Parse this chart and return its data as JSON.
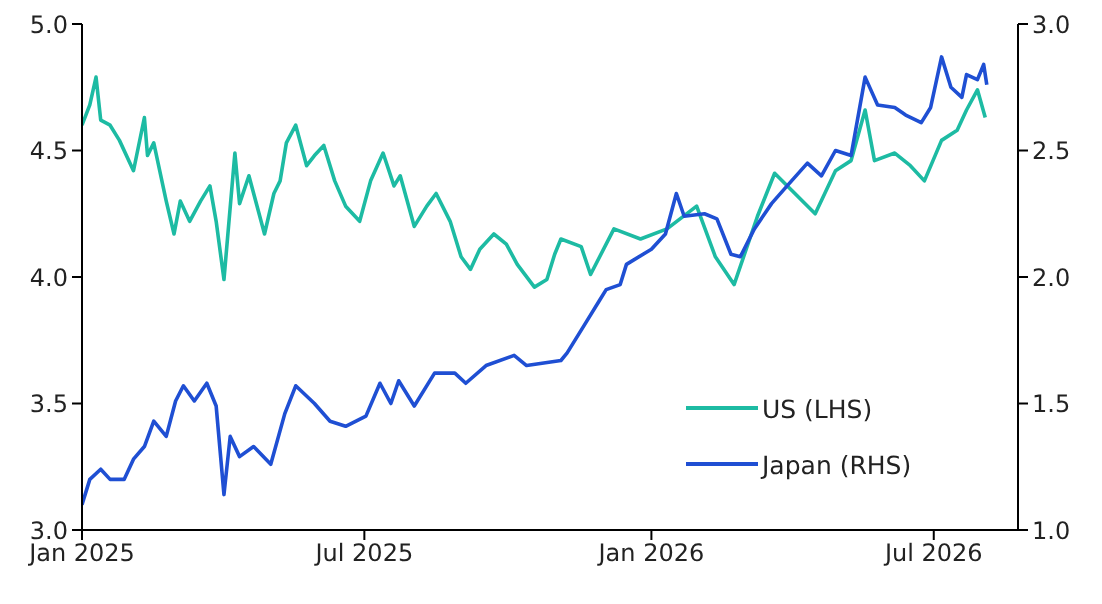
{
  "chart_data": {
    "type": "line",
    "xlim": [
      "2025-01-01",
      "2026-08-24"
    ],
    "xticks": [
      {
        "value": "2025-01-01",
        "label": "Jan 2025"
      },
      {
        "value": "2025-07-01",
        "label": "Jul 2025"
      },
      {
        "value": "2026-01-01",
        "label": "Jan 2026"
      },
      {
        "value": "2026-07-01",
        "label": "Jul 2026"
      }
    ],
    "ylim": [
      3,
      5
    ],
    "yticks": [
      {
        "value": 3,
        "label": "3.0"
      },
      {
        "value": 3.5,
        "label": "3.5"
      },
      {
        "value": 4,
        "label": "4.0"
      },
      {
        "value": 4.5,
        "label": "4.5"
      },
      {
        "value": 5,
        "label": "5.0"
      }
    ],
    "y2lim": [
      1,
      3
    ],
    "y2ticks": [
      {
        "value": 1,
        "label": "1.0"
      },
      {
        "value": 1.5,
        "label": "1.5"
      },
      {
        "value": 2,
        "label": "2.0"
      },
      {
        "value": 2.5,
        "label": "2.5"
      },
      {
        "value": 3,
        "label": "3.0"
      }
    ],
    "legend": "bottom right",
    "line_style": "solid",
    "marker": "none",
    "series": [
      {
        "name": "US (LHS)",
        "color": "#1dbba3",
        "x": [
          "2025-01-01",
          "2025-01-06",
          "2025-01-10",
          "2025-01-13",
          "2025-01-19",
          "2025-01-25",
          "2025-02-03",
          "2025-02-10",
          "2025-02-12",
          "2025-02-16",
          "2025-02-24",
          "2025-03-01",
          "2025-03-05",
          "2025-03-11",
          "2025-03-18",
          "2025-03-24",
          "2025-03-28",
          "2025-04-02",
          "2025-04-09",
          "2025-04-12",
          "2025-04-18",
          "2025-04-28",
          "2025-05-04",
          "2025-05-08",
          "2025-05-12",
          "2025-05-18",
          "2025-05-25",
          "2025-05-30",
          "2025-06-05",
          "2025-06-12",
          "2025-06-19",
          "2025-06-28",
          "2025-07-05",
          "2025-07-13",
          "2025-07-20",
          "2025-07-24",
          "2025-08-02",
          "2025-08-10",
          "2025-08-16",
          "2025-08-25",
          "2025-09-01",
          "2025-09-07",
          "2025-09-13",
          "2025-09-22",
          "2025-09-30",
          "2025-10-07",
          "2025-10-18",
          "2025-10-26",
          "2025-10-31",
          "2025-11-04",
          "2025-11-17",
          "2025-11-23",
          "2025-12-08",
          "2025-12-25",
          "2026-01-11",
          "2026-01-30",
          "2026-02-11",
          "2026-02-23",
          "2026-03-10",
          "2026-03-21",
          "2026-04-03",
          "2026-04-16",
          "2026-04-29",
          "2026-05-09",
          "2026-05-18",
          "2026-05-24",
          "2026-06-06",
          "2026-06-16",
          "2026-06-25",
          "2026-07-06",
          "2026-07-16",
          "2026-07-22",
          "2026-07-29",
          "2026-08-03"
        ],
        "values": [
          4.6,
          4.68,
          4.79,
          4.62,
          4.6,
          4.54,
          4.42,
          4.63,
          4.48,
          4.53,
          4.3,
          4.17,
          4.3,
          4.22,
          4.3,
          4.36,
          4.22,
          3.99,
          4.49,
          4.29,
          4.4,
          4.17,
          4.33,
          4.38,
          4.53,
          4.6,
          4.44,
          4.48,
          4.52,
          4.38,
          4.28,
          4.22,
          4.38,
          4.49,
          4.36,
          4.4,
          4.2,
          4.28,
          4.33,
          4.22,
          4.08,
          4.03,
          4.11,
          4.17,
          4.13,
          4.05,
          3.96,
          3.99,
          4.09,
          4.15,
          4.12,
          4.01,
          4.19,
          4.15,
          4.19,
          4.28,
          4.08,
          3.97,
          4.24,
          4.41,
          4.33,
          4.25,
          4.42,
          4.46,
          4.66,
          4.46,
          4.49,
          4.44,
          4.38,
          4.54,
          4.58,
          4.66,
          4.74,
          4.63
        ]
      },
      {
        "name": "Japan (RHS)",
        "color": "#1f4fd3",
        "axis": "y2",
        "x": [
          "2025-01-01",
          "2025-01-06",
          "2025-01-13",
          "2025-01-19",
          "2025-01-28",
          "2025-02-03",
          "2025-02-10",
          "2025-02-16",
          "2025-02-24",
          "2025-03-02",
          "2025-03-07",
          "2025-03-14",
          "2025-03-22",
          "2025-03-28",
          "2025-04-02",
          "2025-04-06",
          "2025-04-12",
          "2025-04-21",
          "2025-05-02",
          "2025-05-11",
          "2025-05-18",
          "2025-05-30",
          "2025-06-09",
          "2025-06-19",
          "2025-07-02",
          "2025-07-11",
          "2025-07-18",
          "2025-07-23",
          "2025-08-02",
          "2025-08-15",
          "2025-08-28",
          "2025-09-04",
          "2025-09-17",
          "2025-10-05",
          "2025-10-13",
          "2025-11-04",
          "2025-11-08",
          "2025-11-19",
          "2025-11-29",
          "2025-12-03",
          "2025-12-12",
          "2025-12-16",
          "2026-01-01",
          "2026-01-10",
          "2026-01-17",
          "2026-01-22",
          "2026-02-04",
          "2026-02-12",
          "2026-02-21",
          "2026-02-27",
          "2026-03-08",
          "2026-03-19",
          "2026-03-29",
          "2026-04-11",
          "2026-04-20",
          "2026-04-29",
          "2026-05-09",
          "2026-05-18",
          "2026-05-26",
          "2026-06-06",
          "2026-06-13",
          "2026-06-23",
          "2026-06-29",
          "2026-07-06",
          "2026-07-12",
          "2026-07-19",
          "2026-07-22",
          "2026-07-29",
          "2026-08-02",
          "2026-08-04"
        ],
        "values": [
          1.1,
          1.2,
          1.24,
          1.2,
          1.2,
          1.28,
          1.33,
          1.43,
          1.37,
          1.51,
          1.57,
          1.51,
          1.58,
          1.49,
          1.14,
          1.37,
          1.29,
          1.33,
          1.26,
          1.46,
          1.57,
          1.5,
          1.43,
          1.41,
          1.45,
          1.58,
          1.5,
          1.59,
          1.49,
          1.62,
          1.62,
          1.58,
          1.65,
          1.69,
          1.65,
          1.67,
          1.7,
          1.81,
          1.91,
          1.95,
          1.97,
          2.05,
          2.11,
          2.17,
          2.33,
          2.24,
          2.25,
          2.23,
          2.09,
          2.08,
          2.19,
          2.29,
          2.36,
          2.45,
          2.4,
          2.5,
          2.48,
          2.79,
          2.68,
          2.67,
          2.64,
          2.61,
          2.67,
          2.87,
          2.75,
          2.71,
          2.8,
          2.78,
          2.84,
          2.76
        ]
      }
    ]
  }
}
